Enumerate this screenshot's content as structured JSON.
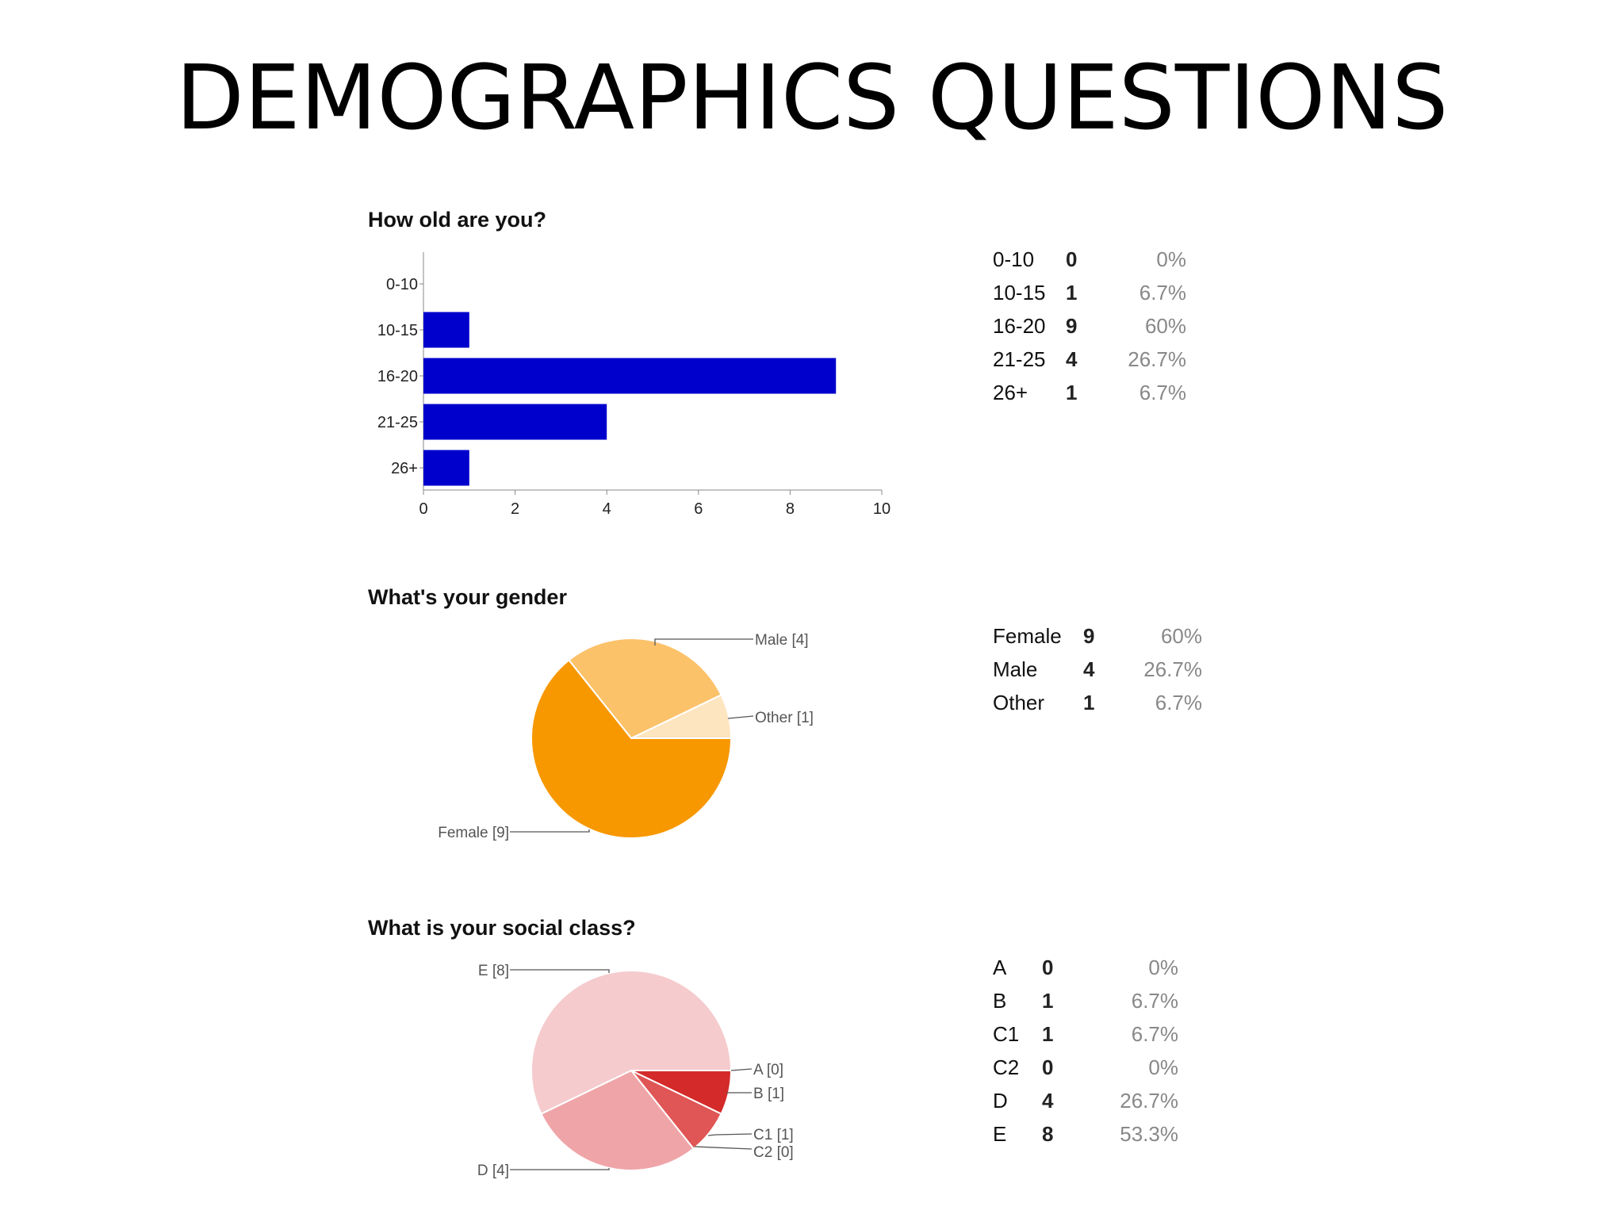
{
  "slide": {
    "title": "DEMOGRAPHICS QUESTIONS"
  },
  "questions": {
    "age": {
      "title": "How old are you?"
    },
    "gender": {
      "title": "What's your gender"
    },
    "class": {
      "title": "What is your social class?"
    }
  },
  "tables": {
    "age": [
      {
        "label": "0-10",
        "count": "0",
        "pct": "0%"
      },
      {
        "label": "10-15",
        "count": "1",
        "pct": "6.7%"
      },
      {
        "label": "16-20",
        "count": "9",
        "pct": "60%"
      },
      {
        "label": "21-25",
        "count": "4",
        "pct": "26.7%"
      },
      {
        "label": "26+",
        "count": "1",
        "pct": "6.7%"
      }
    ],
    "gender": [
      {
        "label": "Female",
        "count": "9",
        "pct": "60%"
      },
      {
        "label": "Male",
        "count": "4",
        "pct": "26.7%"
      },
      {
        "label": "Other",
        "count": "1",
        "pct": "6.7%"
      }
    ],
    "class": [
      {
        "label": "A",
        "count": "0",
        "pct": "0%"
      },
      {
        "label": "B",
        "count": "1",
        "pct": "6.7%"
      },
      {
        "label": "C1",
        "count": "1",
        "pct": "6.7%"
      },
      {
        "label": "C2",
        "count": "0",
        "pct": "0%"
      },
      {
        "label": "D",
        "count": "4",
        "pct": "26.7%"
      },
      {
        "label": "E",
        "count": "8",
        "pct": "53.3%"
      }
    ]
  },
  "chart_data": [
    {
      "type": "bar",
      "orientation": "horizontal",
      "title": "How old are you?",
      "categories": [
        "0-10",
        "10-15",
        "16-20",
        "21-25",
        "26+"
      ],
      "values": [
        0,
        1,
        9,
        4,
        1
      ],
      "xlim": [
        0,
        10
      ],
      "xticks": [
        0,
        2,
        4,
        6,
        8,
        10
      ],
      "color": "#0000cc",
      "grid": false
    },
    {
      "type": "pie",
      "title": "What's your gender",
      "slices": [
        {
          "label": "Female [9]",
          "value": 9,
          "color": "#f79800"
        },
        {
          "label": "Male [4]",
          "value": 4,
          "color": "#fcc26a"
        },
        {
          "label": "Other [1]",
          "value": 1,
          "color": "#fde5c0"
        }
      ]
    },
    {
      "type": "pie",
      "title": "What is your social class?",
      "slices": [
        {
          "label": "A [0]",
          "value": 0,
          "color": "#c00000"
        },
        {
          "label": "B [1]",
          "value": 1,
          "color": "#d42a2a"
        },
        {
          "label": "C1 [1]",
          "value": 1,
          "color": "#e05555"
        },
        {
          "label": "C2 [0]",
          "value": 0,
          "color": "#e87c7c"
        },
        {
          "label": "D [4]",
          "value": 4,
          "color": "#efa5a8"
        },
        {
          "label": "E [8]",
          "value": 8,
          "color": "#f5cbcd"
        }
      ]
    }
  ]
}
